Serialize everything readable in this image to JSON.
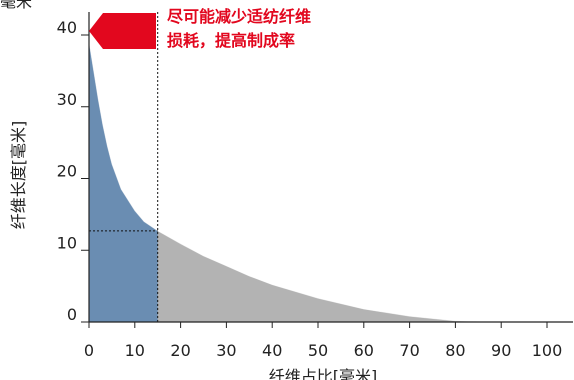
{
  "chart_data": {
    "type": "area",
    "title": "",
    "xlabel": "纤维占比[毫米]",
    "ylabel": "纤维长度[毫米]",
    "top_cut_label": "毫米",
    "xlim": [
      0,
      100
    ],
    "ylim": [
      0,
      40
    ],
    "x_ticks": [
      "0",
      "10",
      "20",
      "30",
      "40",
      "50",
      "60",
      "70",
      "80",
      "90",
      "100"
    ],
    "y_ticks": [
      "0",
      "10",
      "20",
      "30",
      "40"
    ],
    "x": [
      0,
      1,
      2,
      3,
      4,
      5,
      7,
      10,
      12,
      15,
      20,
      25,
      30,
      35,
      40,
      50,
      60,
      70,
      80,
      90,
      100
    ],
    "y": [
      39,
      35,
      31,
      27.5,
      24.5,
      22,
      18.5,
      15.5,
      14,
      12.7,
      10.9,
      9.2,
      7.8,
      6.4,
      5.2,
      3.3,
      1.8,
      0.8,
      0.15,
      0,
      0
    ],
    "highlight_x_max": 15,
    "reference_y": 12.7,
    "colors": {
      "short_fiber_area": "#6a8db2",
      "remaining_area": "#b3b3b3",
      "callout": "#e2071e",
      "axis": "#222222"
    },
    "annotation": {
      "lines": [
        "尽可能减少适纺纤维",
        "损耗，提高制成率"
      ],
      "color": "#e2071e"
    }
  }
}
